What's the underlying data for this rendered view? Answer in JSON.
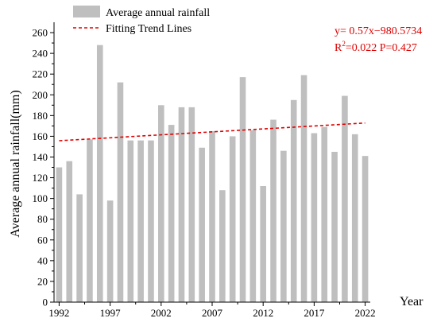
{
  "chart_data": {
    "type": "bar",
    "ylabel": "Average annual rainfall(mm)",
    "xlabel": "Year",
    "ylim": [
      0,
      270
    ],
    "xlim": [
      1991.5,
      2022.5
    ],
    "y_ticks": [
      0,
      20,
      40,
      60,
      80,
      100,
      120,
      140,
      160,
      180,
      200,
      220,
      240,
      260
    ],
    "x_ticks": [
      1992,
      1997,
      2002,
      2007,
      2012,
      2017,
      2022
    ],
    "legend_position": "top-left",
    "grid": false,
    "bar_color": "#bfbfbf",
    "trend_color": "#e00000",
    "series": [
      {
        "name": "Average annual rainfall",
        "x": [
          1992,
          1993,
          1994,
          1995,
          1996,
          1997,
          1998,
          1999,
          2000,
          2001,
          2002,
          2003,
          2004,
          2005,
          2006,
          2007,
          2008,
          2009,
          2010,
          2011,
          2012,
          2013,
          2014,
          2015,
          2016,
          2017,
          2018,
          2019,
          2020,
          2021,
          2022
        ],
        "values": [
          130,
          136,
          104,
          157,
          248,
          98,
          212,
          156,
          156,
          156,
          190,
          171,
          188,
          188,
          149,
          165,
          108,
          160,
          217,
          166,
          112,
          176,
          146,
          195,
          219,
          163,
          169,
          145,
          199,
          162,
          141
        ]
      },
      {
        "name": "Fitting Trend Lines",
        "type": "line",
        "x": [
          1992,
          2022
        ],
        "values": [
          155.7,
          172.8
        ]
      }
    ],
    "annotations": {
      "equation": "y= 0.57x−980.5734",
      "r_prefix": "R",
      "r_sup": "2",
      "r_rest": "=0.022  P=0.427"
    }
  }
}
